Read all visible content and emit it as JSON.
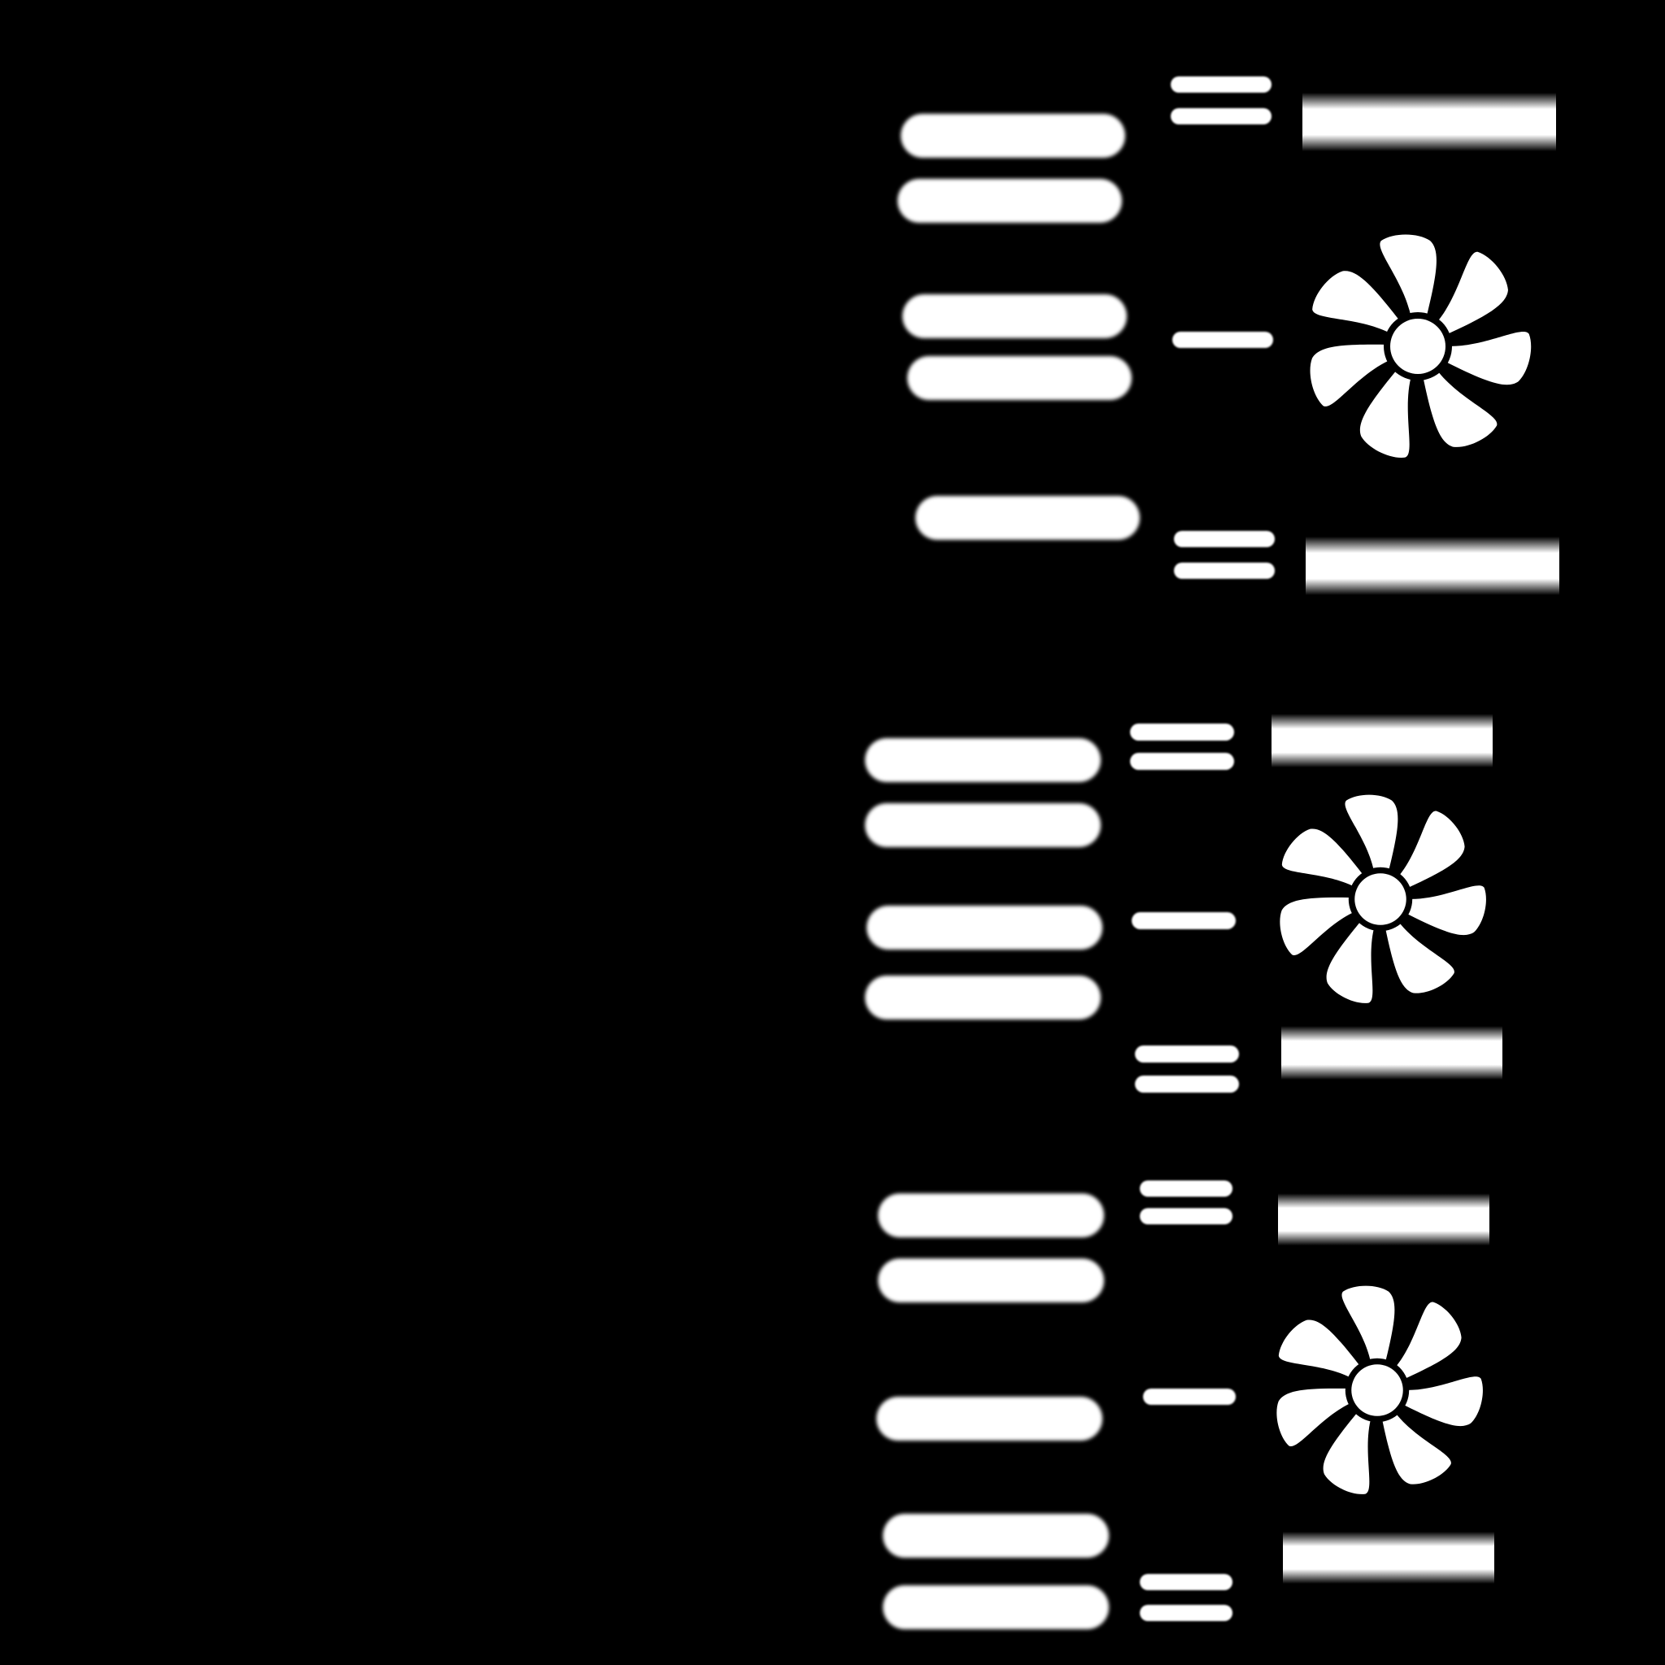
{
  "scene": {
    "description_free": true,
    "background_color": "#000000",
    "foreground_color": "#ffffff",
    "icons": [
      "fan-icon",
      "fan-icon",
      "fan-icon"
    ]
  }
}
